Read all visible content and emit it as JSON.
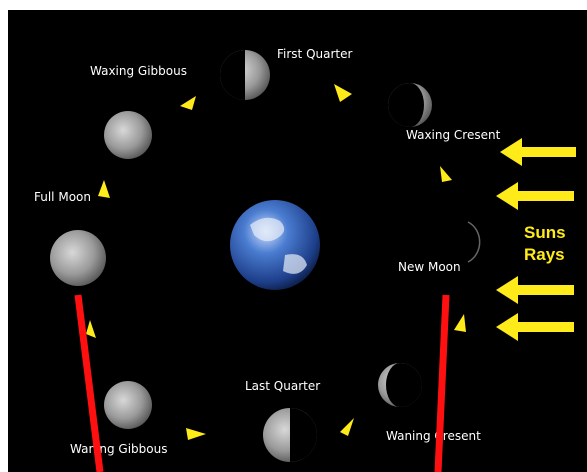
{
  "labels": {
    "first_quarter": "First Quarter",
    "waxing_gibbous": "Waxing Gibbous",
    "waxing_crescent": "Waxing Cresent",
    "full_moon": "Full Moon",
    "new_moon": "New Moon",
    "last_quarter": "Last Quarter",
    "waning_gibbous": "Waning Gibbous",
    "waning_crescent": "Waning Cresent",
    "suns_rays": [
      "Suns",
      "Rays"
    ]
  }
}
